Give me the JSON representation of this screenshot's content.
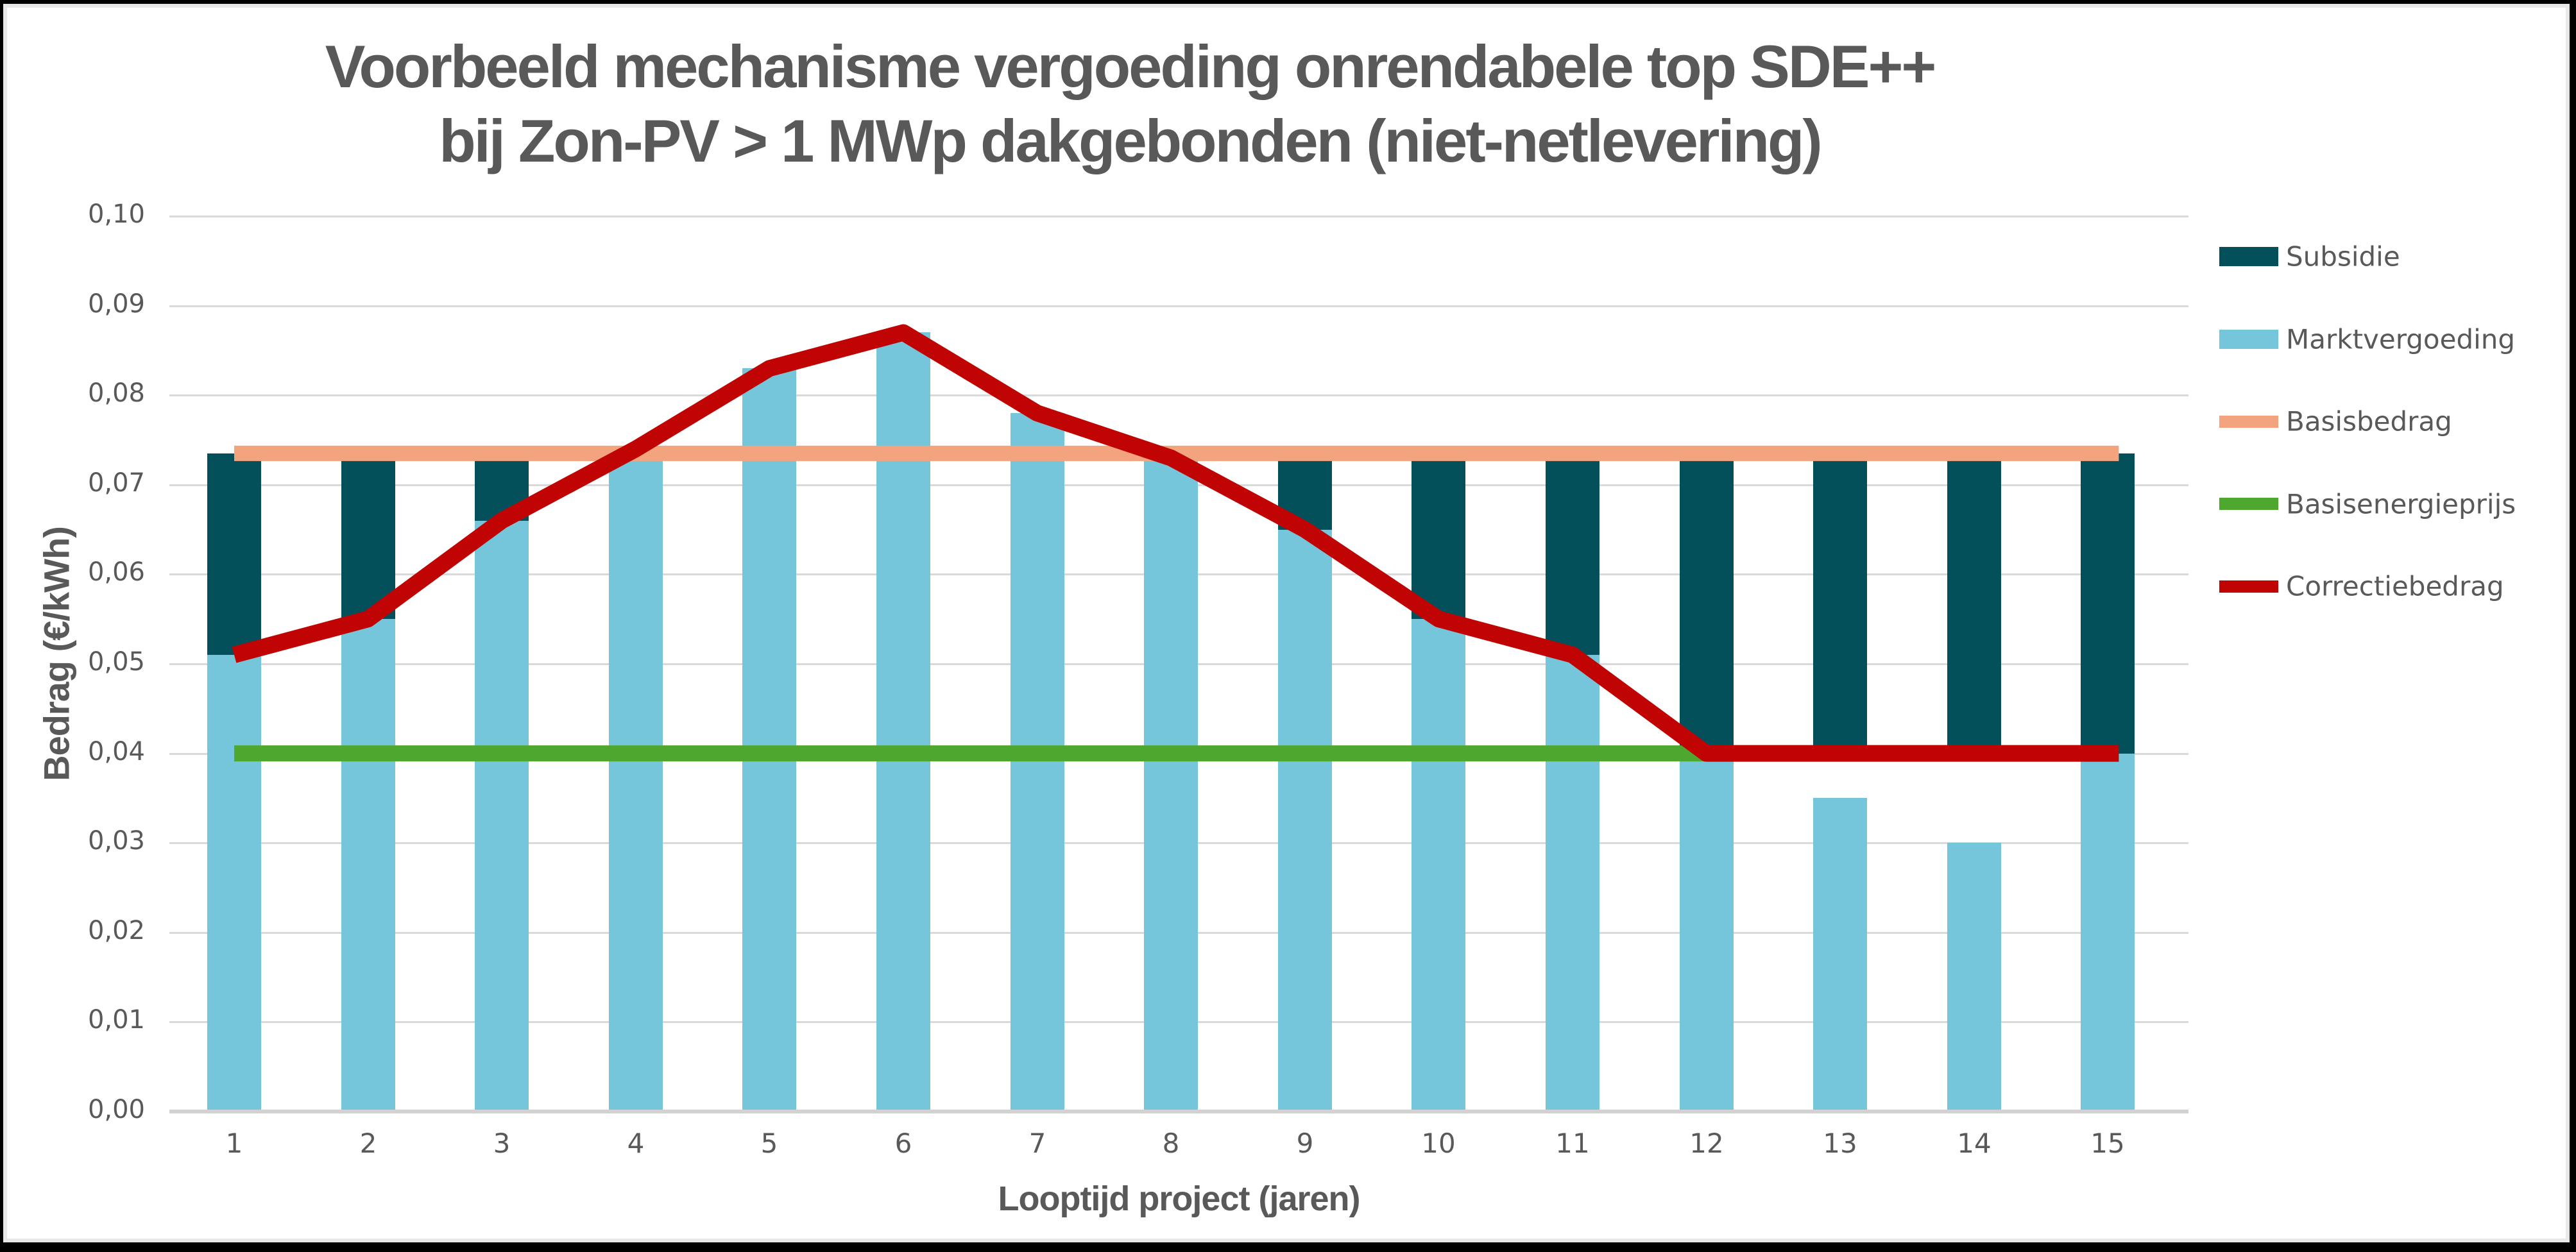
{
  "title": {
    "line1": "Voorbeeld mechanisme vergoeding onrendabele top SDE++",
    "line2": "bij Zon-PV > 1 MWp dakgebonden (niet-netlevering)"
  },
  "y_axis": {
    "title": "Bedrag (€/kWh)",
    "tick_labels": [
      "0,00",
      "0,01",
      "0,02",
      "0,03",
      "0,04",
      "0,05",
      "0,06",
      "0,07",
      "0,08",
      "0,09",
      "0,10"
    ],
    "tick_values": [
      0.0,
      0.01,
      0.02,
      0.03,
      0.04,
      0.05,
      0.06,
      0.07,
      0.08,
      0.09,
      0.1
    ]
  },
  "x_axis": {
    "title": "Looptijd project (jaren)",
    "tick_labels": [
      "1",
      "2",
      "3",
      "4",
      "5",
      "6",
      "7",
      "8",
      "9",
      "10",
      "11",
      "12",
      "13",
      "14",
      "15"
    ]
  },
  "legend": {
    "items": [
      {
        "label": "Subsidie",
        "swatch": "bar",
        "color": "#04505a"
      },
      {
        "label": "Marktvergoeding",
        "swatch": "bar",
        "color": "#75c6da"
      },
      {
        "label": "Basisbedrag",
        "swatch": "line",
        "color": "#f3a37e"
      },
      {
        "label": "Basisenergieprijs",
        "swatch": "line",
        "color": "#4ea72e"
      },
      {
        "label": "Correctiebedrag",
        "swatch": "line",
        "color": "#c00404"
      }
    ]
  },
  "chart_data": {
    "type": "combo",
    "categories": [
      1,
      2,
      3,
      4,
      5,
      6,
      7,
      8,
      9,
      10,
      11,
      12,
      13,
      14,
      15
    ],
    "ylim": [
      0,
      0.1
    ],
    "grid": true,
    "legend_position": "right",
    "number_format": "decimal-comma",
    "series": [
      {
        "name": "Subsidie",
        "type": "bar",
        "stack": "floating-top",
        "color": "#04505a",
        "values": [
          0.0225,
          0.0185,
          0.0075,
          0,
          0,
          0,
          0,
          0,
          0.0085,
          0.0185,
          0.0225,
          0.0335,
          0.0335,
          0.0335,
          0.0335
        ]
      },
      {
        "name": "Marktvergoeding",
        "type": "bar",
        "color": "#75c6da",
        "values": [
          0.051,
          0.055,
          0.066,
          0.074,
          0.083,
          0.087,
          0.078,
          0.073,
          0.065,
          0.055,
          0.051,
          0.0395,
          0.035,
          0.03,
          0.04
        ]
      },
      {
        "name": "Basisbedrag",
        "type": "line",
        "color": "#f3a37e",
        "constant_value": 0.0735,
        "x_extent": [
          1,
          15
        ]
      },
      {
        "name": "Basisenergieprijs",
        "type": "line",
        "color": "#4ea72e",
        "constant_value": 0.04,
        "x_extent": [
          1,
          12
        ]
      },
      {
        "name": "Correctiebedrag",
        "type": "line",
        "color": "#c00404",
        "values": [
          0.051,
          0.055,
          0.066,
          0.074,
          0.083,
          0.087,
          0.078,
          0.073,
          0.065,
          0.055,
          0.051,
          0.04,
          0.04,
          0.04,
          0.04
        ]
      }
    ]
  }
}
